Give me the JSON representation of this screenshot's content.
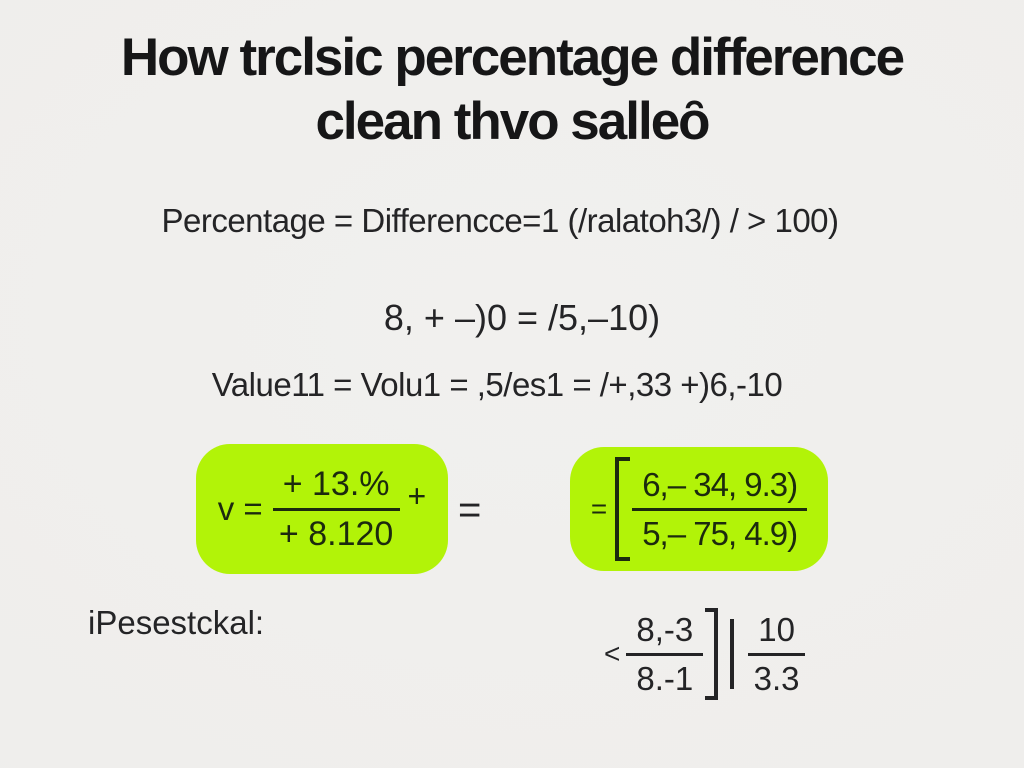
{
  "title": {
    "line1": "How trclsic percentage difference",
    "line2": "clean thvo salleȏ"
  },
  "formula_line": "Percentage = Differencce=1 (/ralatoh3/) / > 100)",
  "equation_line": "8, + –)0 = /5,–10)",
  "value_line": "Value11 = Volu1 = ,5/es1 = /+,33 +)6,-10",
  "left_box": {
    "prefix": "v =",
    "numerator": "+ 13.%",
    "denominator": "+ 8.120",
    "suffix": "+",
    "after_equals": "="
  },
  "right_box": {
    "prefix": "=",
    "numerator": "6,– 34, 9.3)",
    "denominator": "5,– 75, 4.9)"
  },
  "footer": {
    "label": "iPesestckal:",
    "less_than": "<",
    "frac1": {
      "numerator": "8,-3",
      "denominator": "8.-1"
    },
    "frac2": {
      "numerator": "10",
      "denominator": "3.3"
    }
  },
  "colors": {
    "background": "#efeeec",
    "highlight": "#b2f308",
    "text": "#1d1d1f",
    "box_text": "#1c2a0e"
  }
}
